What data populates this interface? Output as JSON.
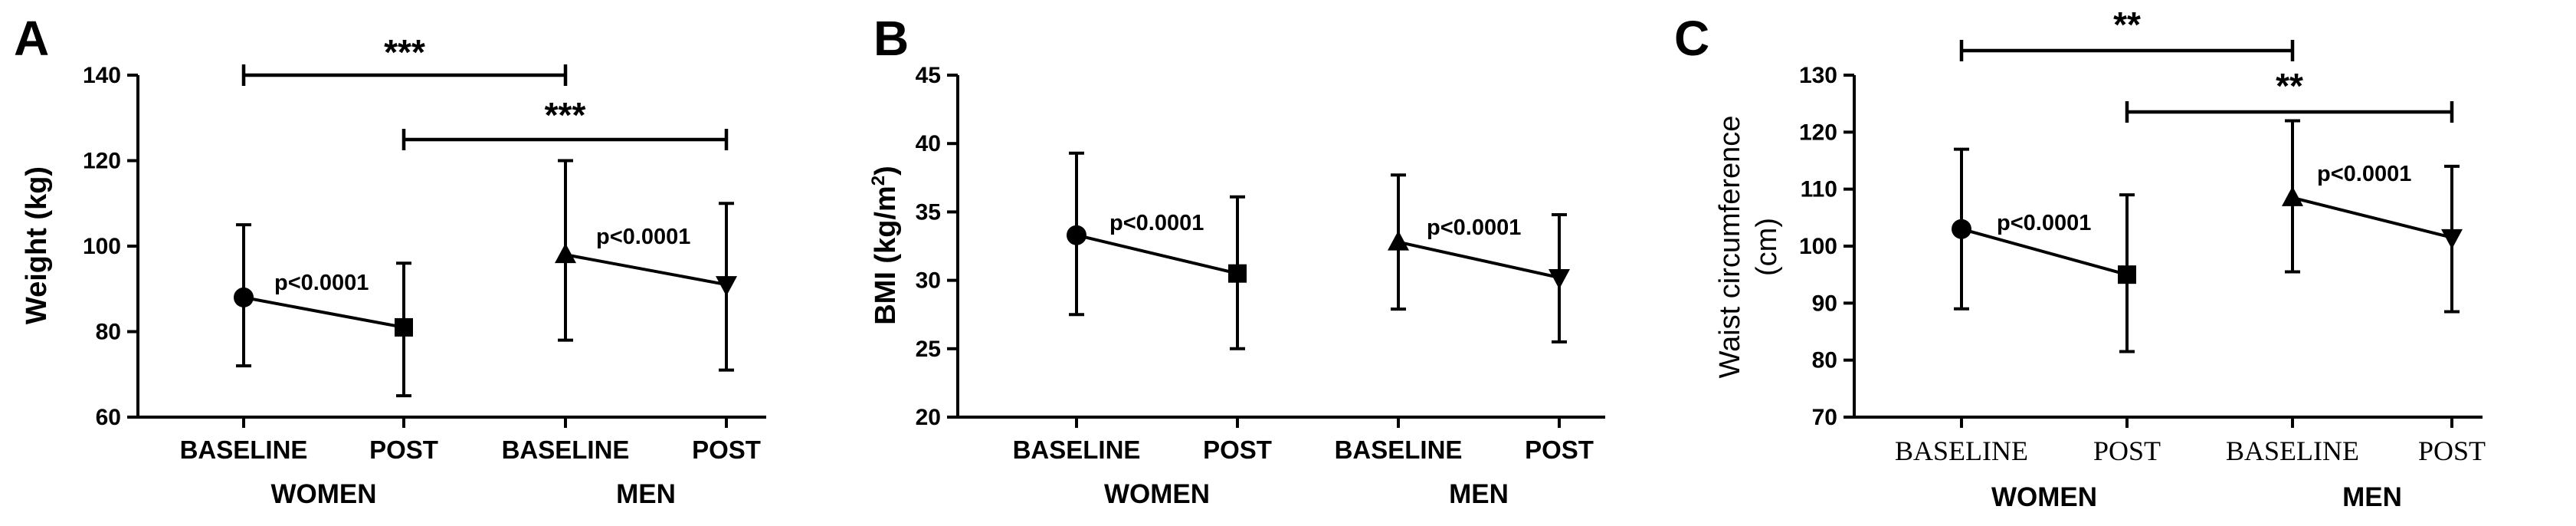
{
  "chart_data": [
    {
      "panel": "A",
      "type": "line",
      "ylabel": "Weight (kg)",
      "ylabel_unit_superscript": "",
      "ylim": [
        60,
        140
      ],
      "yticks": [
        60,
        80,
        100,
        120,
        140
      ],
      "categories": [
        "BASELINE",
        "POST",
        "BASELINE",
        "POST"
      ],
      "groups": [
        "WOMEN",
        "MEN"
      ],
      "series": [
        {
          "group": "WOMEN",
          "points": [
            {
              "category": "BASELINE",
              "mean": 88,
              "low": 72,
              "high": 105,
              "marker": "circle"
            },
            {
              "category": "POST",
              "mean": 81,
              "low": 65,
              "high": 96,
              "marker": "square"
            }
          ],
          "annotation": "p<0.0001"
        },
        {
          "group": "MEN",
          "points": [
            {
              "category": "BASELINE",
              "mean": 98,
              "low": 78,
              "high": 120,
              "marker": "triangle-up"
            },
            {
              "category": "POST",
              "mean": 91,
              "low": 71,
              "high": 110,
              "marker": "triangle-down"
            }
          ],
          "annotation": "p<0.0001"
        }
      ],
      "brackets": [
        {
          "from": 0,
          "to": 2,
          "label": "***"
        },
        {
          "from": 1,
          "to": 3,
          "label": "***"
        }
      ]
    },
    {
      "panel": "B",
      "type": "line",
      "ylabel": "BMI (kg/m",
      "ylabel_unit_superscript": "2",
      "ylabel_suffix": ")",
      "ylim": [
        20,
        45
      ],
      "yticks": [
        20,
        25,
        30,
        35,
        40,
        45
      ],
      "categories": [
        "BASELINE",
        "POST",
        "BASELINE",
        "POST"
      ],
      "groups": [
        "WOMEN",
        "MEN"
      ],
      "series": [
        {
          "group": "WOMEN",
          "points": [
            {
              "category": "BASELINE",
              "mean": 33.3,
              "low": 27.5,
              "high": 39.3,
              "marker": "circle"
            },
            {
              "category": "POST",
              "mean": 30.5,
              "low": 25,
              "high": 36.1,
              "marker": "square"
            }
          ],
          "annotation": "p<0.0001"
        },
        {
          "group": "MEN",
          "points": [
            {
              "category": "BASELINE",
              "mean": 32.8,
              "low": 27.9,
              "high": 37.7,
              "marker": "triangle-up"
            },
            {
              "category": "POST",
              "mean": 30.2,
              "low": 25.5,
              "high": 34.8,
              "marker": "triangle-down"
            }
          ],
          "annotation": "p<0.0001"
        }
      ],
      "brackets": []
    },
    {
      "panel": "C",
      "type": "line",
      "ylabel": "Waist circumference",
      "ylabel_line2": "(cm)",
      "ylim": [
        70,
        130
      ],
      "yticks": [
        70,
        80,
        90,
        100,
        110,
        120,
        130
      ],
      "categories": [
        "BASELINE",
        "POST",
        "BASELINE",
        "POST"
      ],
      "groups": [
        "WOMEN",
        "MEN"
      ],
      "series": [
        {
          "group": "WOMEN",
          "points": [
            {
              "category": "BASELINE",
              "mean": 103,
              "low": 89,
              "high": 117,
              "marker": "circle"
            },
            {
              "category": "POST",
              "mean": 95,
              "low": 81.5,
              "high": 109,
              "marker": "square"
            }
          ],
          "annotation": "p<0.0001"
        },
        {
          "group": "MEN",
          "points": [
            {
              "category": "BASELINE",
              "mean": 108.5,
              "low": 95.5,
              "high": 122,
              "marker": "triangle-up"
            },
            {
              "category": "POST",
              "mean": 101.5,
              "low": 88.5,
              "high": 114,
              "marker": "triangle-down"
            }
          ],
          "annotation": "p<0.0001"
        }
      ],
      "brackets": [
        {
          "from": 0,
          "to": 2,
          "label": "**"
        },
        {
          "from": 1,
          "to": 3,
          "label": "**"
        }
      ]
    }
  ]
}
